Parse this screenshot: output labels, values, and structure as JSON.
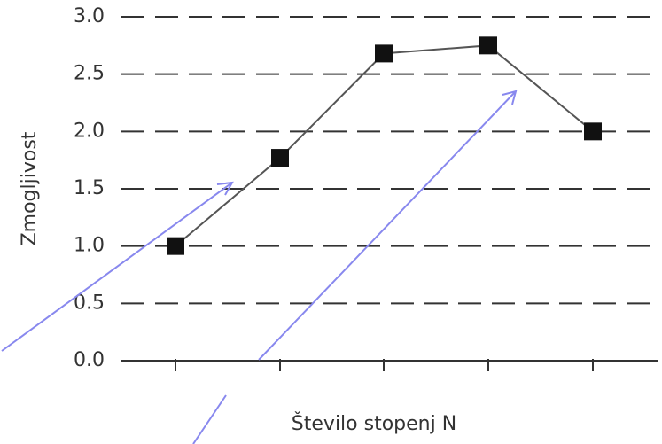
{
  "chart_data": {
    "type": "line",
    "title": "",
    "xlabel": "Število stopenj N",
    "ylabel": "Zmogljivost",
    "ylim": [
      0,
      3
    ],
    "yticks": [
      "0.0",
      "0.5",
      "1.0",
      "1.5",
      "2.0",
      "2.5",
      "3.0"
    ],
    "x": [
      1,
      2,
      3,
      4,
      5
    ],
    "series": [
      {
        "values": [
          1.0,
          1.77,
          2.68,
          2.75,
          2.0
        ]
      }
    ],
    "grid": "horizontal dashed",
    "marker": "filled square",
    "colors": {
      "line": "#555555",
      "marker": "#111111",
      "grid": "#333333",
      "annotation": "#8888ee"
    }
  }
}
